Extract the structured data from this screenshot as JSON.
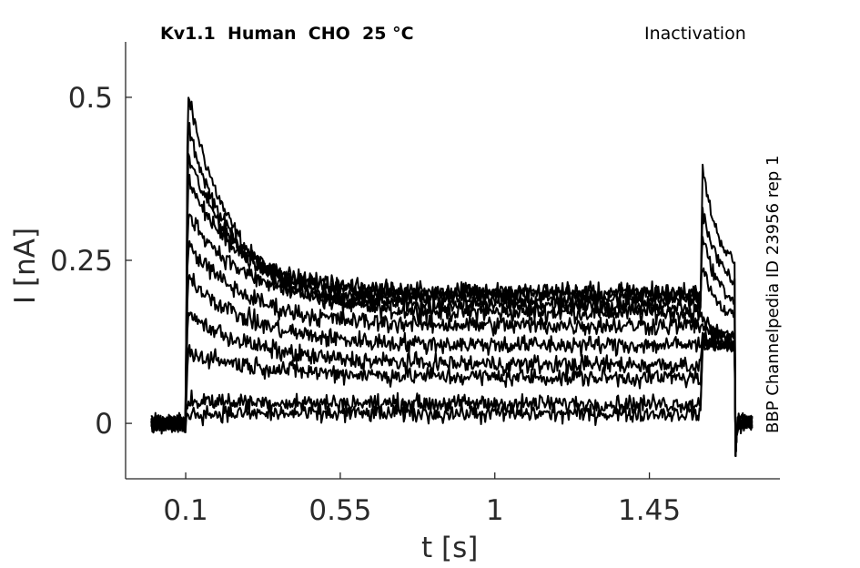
{
  "chart_data": {
    "type": "line",
    "title": "Kv1.1  Human  CHO  25 °C",
    "protocol_label": "Inactivation",
    "side_note": "BBP Channelpedia ID 23956 rep 1",
    "xlabel": "t [s]",
    "ylabel": "I [nA]",
    "xlim": [
      -0.075,
      1.83
    ],
    "ylim": [
      -0.085,
      0.585
    ],
    "x_ticks": [
      0.1,
      0.55,
      1,
      1.45
    ],
    "x_tick_labels": [
      "0.1",
      "0.55",
      "1",
      "1.45"
    ],
    "y_ticks": [
      0,
      0.25,
      0.5
    ],
    "y_tick_labels": [
      "0",
      "0.25",
      "0.5"
    ],
    "grid": false,
    "line_color": "#000000",
    "axis_color": "#262626",
    "pulse_1_start_s": 0.1,
    "pulse_2_start_s": 1.6,
    "pulse_2_end_s": 1.7,
    "series": [
      {
        "peak": 0.52,
        "steady": 0.17,
        "tau": 0.14,
        "peak2": 0.41,
        "end2": 0.22
      },
      {
        "peak": 0.47,
        "steady": 0.19,
        "tau": 0.13,
        "peak2": 0.34,
        "end2": 0.2
      },
      {
        "peak": 0.42,
        "steady": 0.2,
        "tau": 0.14,
        "peak2": 0.3,
        "end2": 0.17
      },
      {
        "peak": 0.38,
        "steady": 0.2,
        "tau": 0.15,
        "peak2": 0.25,
        "end2": 0.15
      },
      {
        "peak": 0.33,
        "steady": 0.18,
        "tau": 0.16,
        "peak2": 0.16,
        "end2": 0.13
      },
      {
        "peak": 0.28,
        "steady": 0.15,
        "tau": 0.17,
        "peak2": 0.15,
        "end2": 0.13
      },
      {
        "peak": 0.23,
        "steady": 0.12,
        "tau": 0.18,
        "peak2": 0.14,
        "end2": 0.12
      },
      {
        "peak": 0.17,
        "steady": 0.09,
        "tau": 0.2,
        "peak2": 0.13,
        "end2": 0.12
      },
      {
        "peak": 0.11,
        "steady": 0.07,
        "tau": 0.25,
        "peak2": 0.12,
        "end2": 0.12
      },
      {
        "peak": 0.035,
        "steady": 0.03,
        "tau": 0.3,
        "peak2": 0.12,
        "end2": 0.12
      },
      {
        "peak": 0.015,
        "steady": 0.015,
        "tau": 0.3,
        "peak2": 0.12,
        "end2": 0.12
      }
    ]
  }
}
